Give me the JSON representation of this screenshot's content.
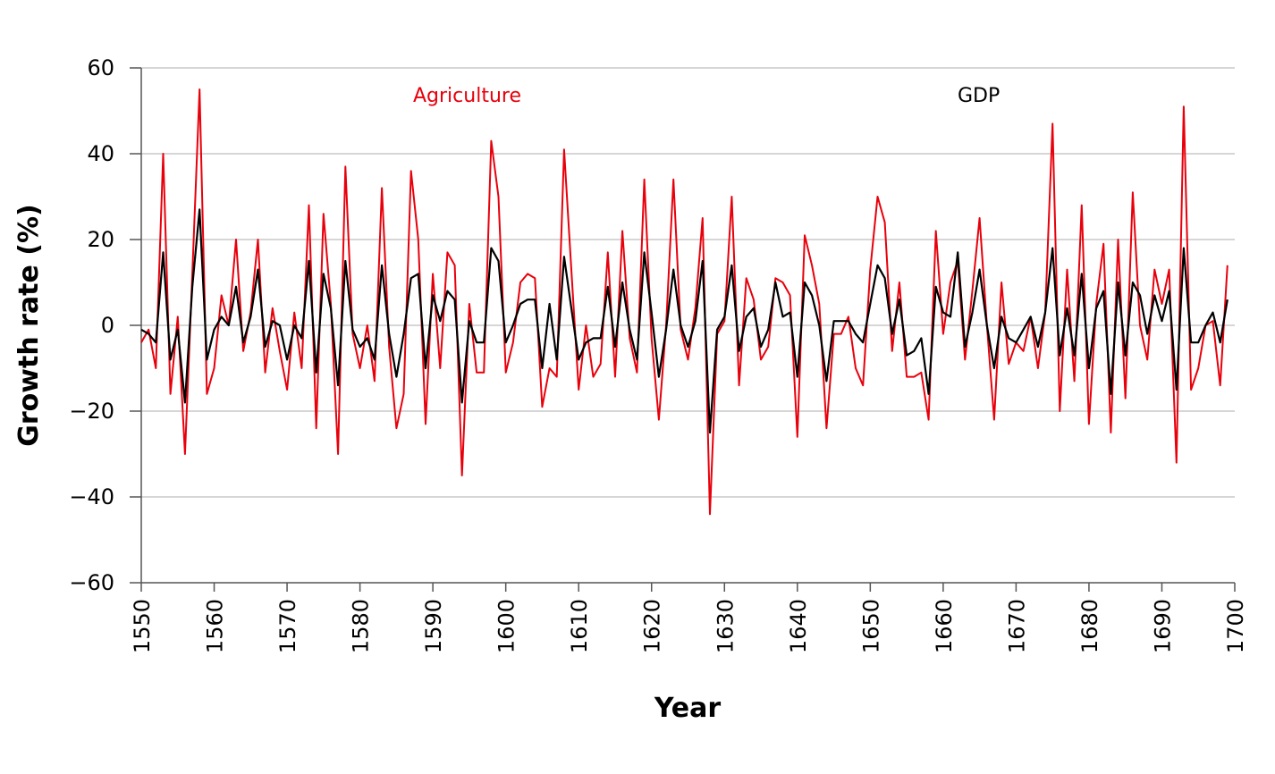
{
  "chart_data": {
    "type": "line",
    "title": "",
    "xlabel": "Year",
    "ylabel": "Growth rate (%)",
    "xlim": [
      1550,
      1700
    ],
    "ylim": [
      -60,
      60
    ],
    "x_ticks": [
      "1550",
      "1560",
      "1570",
      "1580",
      "1590",
      "1600",
      "1610",
      "1620",
      "1630",
      "1640",
      "1650",
      "1660",
      "1670",
      "1680",
      "1690",
      "1700"
    ],
    "y_ticks": [
      "60",
      "40",
      "20",
      "0",
      "−20",
      "−40",
      "−60"
    ],
    "grid": "horizontal",
    "legend": "inline labels near top",
    "x_start": 1550,
    "series": [
      {
        "name": "Agriculture",
        "color": "#e8000b",
        "values": [
          -4,
          -1,
          -10,
          40,
          -16,
          2,
          -30,
          12,
          55,
          -16,
          -10,
          7,
          0,
          20,
          -6,
          3,
          20,
          -11,
          4,
          -6,
          -15,
          3,
          -10,
          28,
          -24,
          26,
          5,
          -30,
          37,
          -2,
          -10,
          0,
          -13,
          32,
          -5,
          -24,
          -16,
          36,
          20,
          -23,
          12,
          -10,
          17,
          14,
          -35,
          5,
          -11,
          -11,
          43,
          30,
          -11,
          -4,
          10,
          12,
          11,
          -19,
          -10,
          -12,
          41,
          13,
          -15,
          0,
          -12,
          -9,
          17,
          -12,
          22,
          -3,
          -11,
          34,
          -3,
          -22,
          0,
          34,
          -1,
          -8,
          4,
          25,
          -44,
          -2,
          1,
          30,
          -14,
          11,
          6,
          -8,
          -5,
          11,
          10,
          7,
          -26,
          21,
          14,
          5,
          -24,
          -2,
          -2,
          2,
          -10,
          -14,
          13,
          30,
          24,
          -6,
          10,
          -12,
          -12,
          -11,
          -22,
          22,
          -2,
          10,
          15,
          -8,
          8,
          25,
          0,
          -22,
          10,
          -9,
          -4,
          -6,
          2,
          -10,
          3,
          47,
          -20,
          13,
          -13,
          28,
          -23,
          5,
          19,
          -25,
          20,
          -17,
          31,
          0,
          -8,
          13,
          5,
          13,
          -32,
          51,
          -15,
          -10,
          0,
          1,
          -14,
          14
        ]
      },
      {
        "name": "GDP",
        "color": "#000000",
        "values": [
          -1,
          -2,
          -4,
          17,
          -8,
          -1,
          -18,
          9,
          27,
          -8,
          -1,
          2,
          0,
          9,
          -4,
          2,
          13,
          -5,
          1,
          0,
          -8,
          0,
          -3,
          15,
          -11,
          12,
          4,
          -14,
          15,
          -1,
          -5,
          -3,
          -8,
          14,
          -2,
          -12,
          -2,
          11,
          12,
          -10,
          7,
          1,
          8,
          6,
          -18,
          1,
          -4,
          -4,
          18,
          15,
          -4,
          0,
          5,
          6,
          6,
          -10,
          5,
          -8,
          16,
          4,
          -8,
          -4,
          -3,
          -3,
          9,
          -5,
          10,
          -1,
          -8,
          17,
          3,
          -12,
          -1,
          13,
          0,
          -5,
          1,
          15,
          -25,
          -1,
          2,
          14,
          -6,
          2,
          4,
          -5,
          -1,
          10,
          2,
          3,
          -12,
          10,
          7,
          0,
          -13,
          1,
          1,
          1,
          -2,
          -4,
          5,
          14,
          11,
          -2,
          6,
          -7,
          -6,
          -3,
          -16,
          9,
          3,
          2,
          17,
          -5,
          3,
          13,
          0,
          -10,
          2,
          -3,
          -4,
          -1,
          2,
          -5,
          3,
          18,
          -7,
          4,
          -7,
          12,
          -10,
          4,
          8,
          -16,
          10,
          -7,
          10,
          7,
          -2,
          7,
          1,
          8,
          -15,
          18,
          -4,
          -4,
          0,
          3,
          -4,
          6
        ]
      }
    ]
  }
}
